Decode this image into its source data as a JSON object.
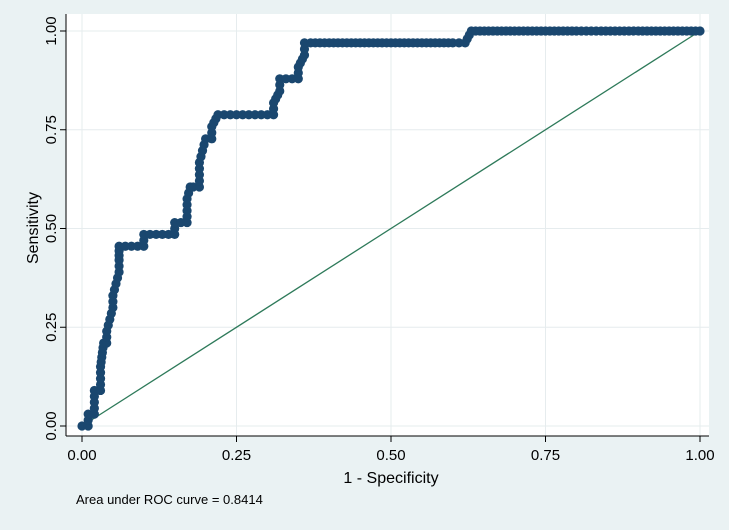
{
  "chart_data": {
    "type": "line",
    "xlabel": "1 - Specificity",
    "ylabel": "Sensitivity",
    "xlim": [
      0,
      1
    ],
    "ylim": [
      0,
      1
    ],
    "x_ticks": [
      "0.00",
      "0.25",
      "0.50",
      "0.75",
      "1.00"
    ],
    "y_ticks": [
      "0.00",
      "0.25",
      "0.50",
      "0.75",
      "1.00"
    ],
    "grid": true,
    "note": "Area under ROC curve = 0.8414",
    "colors": {
      "background": "#eaf2f3",
      "plot_area": "#ffffff",
      "curve": "#1a476f",
      "reference": "#2e7a5a",
      "grid": "#e6ecee"
    },
    "series": [
      {
        "style": "connected-markers",
        "x": [
          0,
          0.01,
          0.01,
          0.02,
          0.02,
          0.02,
          0.03,
          0.03,
          0.03,
          0.035,
          0.04,
          0.04,
          0.045,
          0.05,
          0.05,
          0.055,
          0.06,
          0.06,
          0.06,
          0.07,
          0.08,
          0.09,
          0.1,
          0.1,
          0.11,
          0.12,
          0.13,
          0.14,
          0.15,
          0.15,
          0.16,
          0.17,
          0.17,
          0.17,
          0.175,
          0.18,
          0.19,
          0.19,
          0.19,
          0.195,
          0.2,
          0.21,
          0.21,
          0.22,
          0.24,
          0.26,
          0.28,
          0.3,
          0.31,
          0.31,
          0.32,
          0.32,
          0.33,
          0.35,
          0.35,
          0.36,
          0.36,
          0.37,
          0.4,
          0.45,
          0.5,
          0.55,
          0.6,
          0.62,
          0.63,
          0.7,
          0.75,
          0.8,
          0.84,
          0.9,
          0.95,
          1.0
        ],
        "y": [
          0,
          0,
          0.03,
          0.03,
          0.06,
          0.09,
          0.09,
          0.12,
          0.15,
          0.21,
          0.21,
          0.24,
          0.27,
          0.3,
          0.33,
          0.36,
          0.39,
          0.42,
          0.455,
          0.455,
          0.455,
          0.455,
          0.455,
          0.485,
          0.485,
          0.485,
          0.485,
          0.485,
          0.485,
          0.515,
          0.515,
          0.515,
          0.545,
          0.575,
          0.605,
          0.605,
          0.605,
          0.636,
          0.667,
          0.697,
          0.727,
          0.727,
          0.758,
          0.788,
          0.788,
          0.788,
          0.788,
          0.788,
          0.788,
          0.818,
          0.848,
          0.879,
          0.879,
          0.879,
          0.909,
          0.939,
          0.97,
          0.97,
          0.97,
          0.97,
          0.97,
          0.97,
          0.97,
          0.97,
          1.0,
          1.0,
          1.0,
          1.0,
          1.0,
          1.0,
          1.0,
          1.0
        ]
      },
      {
        "style": "reference-line",
        "x": [
          0,
          1
        ],
        "y": [
          0,
          1
        ]
      }
    ]
  }
}
